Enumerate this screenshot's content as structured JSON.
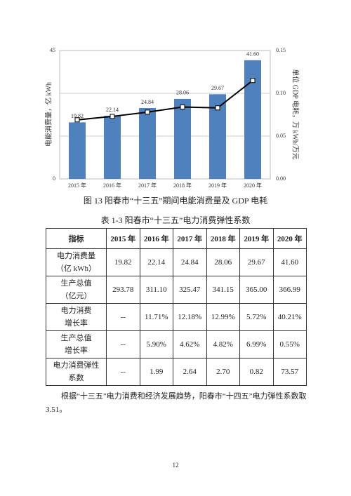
{
  "chart_data": {
    "type": "bar",
    "ylabel": "电能消费量，亿 kWh",
    "y2label": "单位 GDP 电耗，万 kWh/万元",
    "categories": [
      "2015 年",
      "2016 年",
      "2017 年",
      "2018 年",
      "2019 年",
      "2020 年"
    ],
    "series": [
      {
        "type": "bar",
        "color": "#4f81bd",
        "values": [
          19.82,
          22.14,
          24.84,
          28.06,
          29.67,
          41.6
        ],
        "value_labels": [
          "19.82",
          "22.14",
          "24.84",
          "28.06",
          "29.67",
          "41.60"
        ]
      },
      {
        "type": "line",
        "axis": "y2",
        "color": "#000000",
        "values": [
          0.069,
          0.073,
          0.078,
          0.084,
          0.083,
          0.115
        ]
      }
    ],
    "ylim": [
      0,
      45
    ],
    "yticks": [
      0,
      45
    ],
    "y2lim": [
      0,
      0.15
    ],
    "y2ticks": [
      {
        "value": 0,
        "label": "0.00"
      },
      {
        "value": 0.05,
        "label": "0.05"
      },
      {
        "value": 0.1,
        "label": "0.10"
      },
      {
        "value": 0.15,
        "label": "0.15"
      }
    ],
    "grid": true
  },
  "figure_caption": "图 13 阳春市“十三五”期间电能消费量及 GDP 电耗",
  "table": {
    "title": "表 1-3 阳春市“十三五”电力消费弹性系数",
    "header": [
      "指标",
      "2015 年",
      "2016 年",
      "2017 年",
      "2018 年",
      "2019 年",
      "2020 年"
    ],
    "rows": [
      [
        [
          "电力消费量",
          "（亿 kWh）"
        ],
        "19.82",
        "22.14",
        "24.84",
        "28.06",
        "29.67",
        "41.60"
      ],
      [
        [
          "生产总值",
          "（亿元）"
        ],
        "293.78",
        "311.10",
        "325.47",
        "341.15",
        "365.00",
        "366.99"
      ],
      [
        [
          "电力消费",
          "增长率"
        ],
        "--",
        "11.71%",
        "12.18%",
        "12.99%",
        "5.72%",
        "40.21%"
      ],
      [
        [
          "生产总值",
          "增长率"
        ],
        "--",
        "5.90%",
        "4.62%",
        "4.82%",
        "6.99%",
        "0.55%"
      ],
      [
        [
          "电力消费弹性",
          "系数"
        ],
        "--",
        "1.99",
        "2.64",
        "2.70",
        "0.82",
        "73.57"
      ]
    ]
  },
  "paragraph": "根据“十三五”电力消费和经济发展趋势，阳春市“十四五”电力弹性系数取 3.51。",
  "page_number": "12"
}
